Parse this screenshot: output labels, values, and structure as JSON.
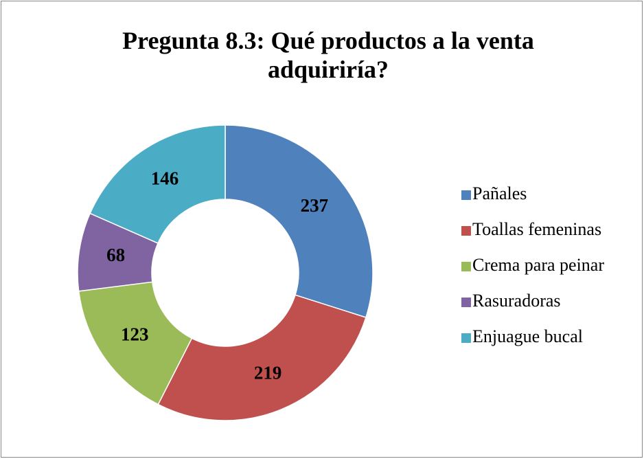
{
  "chart_data": {
    "type": "donut",
    "title": "Pregunta 8.3: Qué productos a la venta adquiriría?",
    "categories": [
      "Pañales",
      "Toallas femeninas",
      "Crema para peinar",
      "Rasuradoras",
      "Enjuague bucal"
    ],
    "values": [
      237,
      219,
      123,
      68,
      146
    ],
    "colors": [
      "#4f81bd",
      "#c0504d",
      "#9bbb59",
      "#8064a2",
      "#4bacc6"
    ],
    "legend": "right"
  }
}
